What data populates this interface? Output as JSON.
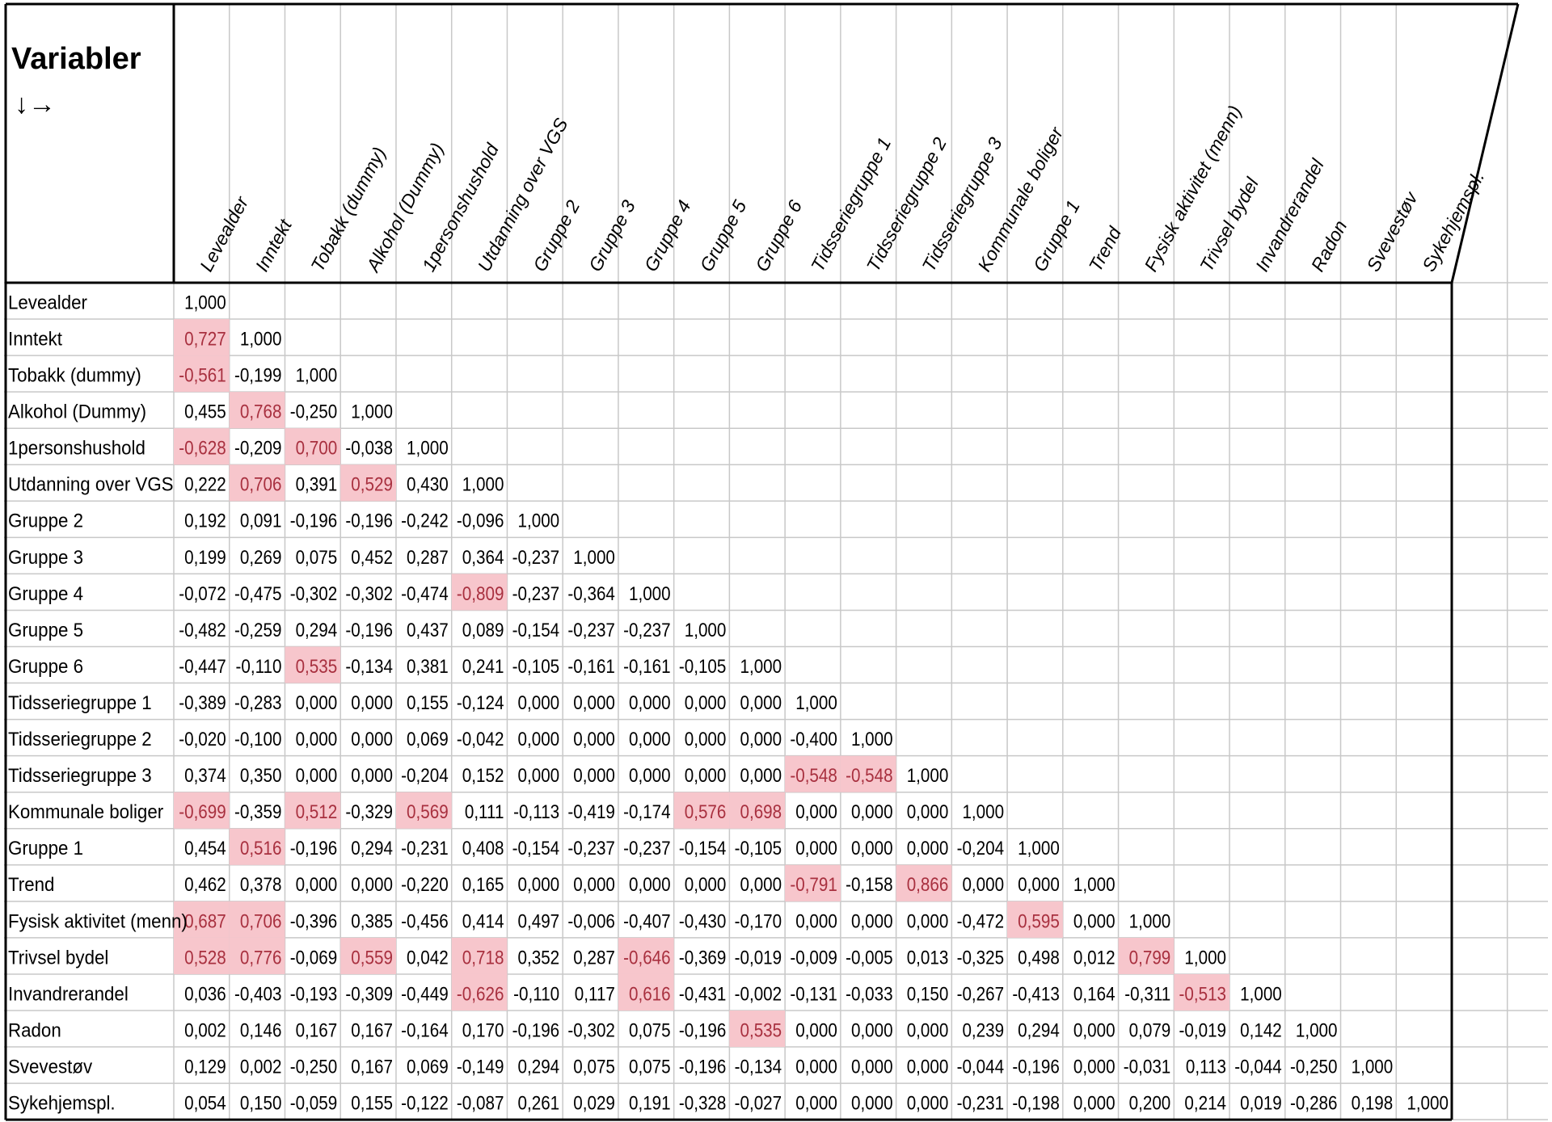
{
  "title": "Variabler",
  "arrow_symbol": "↓→",
  "colors": {
    "highlight": "#f7c6cc",
    "highlight_text": "#a8303f",
    "grid": "#c8c8c8",
    "border": "#000000",
    "text": "#000000"
  },
  "chart_data": {
    "type": "table",
    "variables": [
      "Levealder",
      "Inntekt",
      "Tobakk (dummy)",
      "Alkohol (Dummy)",
      "1personshushold",
      "Utdanning over VGS",
      "Gruppe 2",
      "Gruppe 3",
      "Gruppe 4",
      "Gruppe 5",
      "Gruppe 6",
      "Tidsseriegruppe 1",
      "Tidsseriegruppe 2",
      "Tidsseriegruppe 3",
      "Kommunale boliger",
      "Gruppe 1",
      "Trend",
      "Fysisk aktivitet (menn)",
      "Trivsel bydel",
      "Invandrerandel",
      "Radon",
      "Svevestøv",
      "Sykehjemspl."
    ],
    "values": [
      [
        "1,000"
      ],
      [
        "0,727",
        "1,000"
      ],
      [
        "-0,561",
        "-0,199",
        "1,000"
      ],
      [
        "0,455",
        "0,768",
        "-0,250",
        "1,000"
      ],
      [
        "-0,628",
        "-0,209",
        "0,700",
        "-0,038",
        "1,000"
      ],
      [
        "0,222",
        "0,706",
        "0,391",
        "0,529",
        "0,430",
        "1,000"
      ],
      [
        "0,192",
        "0,091",
        "-0,196",
        "-0,196",
        "-0,242",
        "-0,096",
        "1,000"
      ],
      [
        "0,199",
        "0,269",
        "0,075",
        "0,452",
        "0,287",
        "0,364",
        "-0,237",
        "1,000"
      ],
      [
        "-0,072",
        "-0,475",
        "-0,302",
        "-0,302",
        "-0,474",
        "-0,809",
        "-0,237",
        "-0,364",
        "1,000"
      ],
      [
        "-0,482",
        "-0,259",
        "0,294",
        "-0,196",
        "0,437",
        "0,089",
        "-0,154",
        "-0,237",
        "-0,237",
        "1,000"
      ],
      [
        "-0,447",
        "-0,110",
        "0,535",
        "-0,134",
        "0,381",
        "0,241",
        "-0,105",
        "-0,161",
        "-0,161",
        "-0,105",
        "1,000"
      ],
      [
        "-0,389",
        "-0,283",
        "0,000",
        "0,000",
        "0,155",
        "-0,124",
        "0,000",
        "0,000",
        "0,000",
        "0,000",
        "0,000",
        "1,000"
      ],
      [
        "-0,020",
        "-0,100",
        "0,000",
        "0,000",
        "0,069",
        "-0,042",
        "0,000",
        "0,000",
        "0,000",
        "0,000",
        "0,000",
        "-0,400",
        "1,000"
      ],
      [
        "0,374",
        "0,350",
        "0,000",
        "0,000",
        "-0,204",
        "0,152",
        "0,000",
        "0,000",
        "0,000",
        "0,000",
        "0,000",
        "-0,548",
        "-0,548",
        "1,000"
      ],
      [
        "-0,699",
        "-0,359",
        "0,512",
        "-0,329",
        "0,569",
        "0,111",
        "-0,113",
        "-0,419",
        "-0,174",
        "0,576",
        "0,698",
        "0,000",
        "0,000",
        "0,000",
        "1,000"
      ],
      [
        "0,454",
        "0,516",
        "-0,196",
        "0,294",
        "-0,231",
        "0,408",
        "-0,154",
        "-0,237",
        "-0,237",
        "-0,154",
        "-0,105",
        "0,000",
        "0,000",
        "0,000",
        "-0,204",
        "1,000"
      ],
      [
        "0,462",
        "0,378",
        "0,000",
        "0,000",
        "-0,220",
        "0,165",
        "0,000",
        "0,000",
        "0,000",
        "0,000",
        "0,000",
        "-0,791",
        "-0,158",
        "0,866",
        "0,000",
        "0,000",
        "1,000"
      ],
      [
        "0,687",
        "0,706",
        "-0,396",
        "0,385",
        "-0,456",
        "0,414",
        "0,497",
        "-0,006",
        "-0,407",
        "-0,430",
        "-0,170",
        "0,000",
        "0,000",
        "0,000",
        "-0,472",
        "0,595",
        "0,000",
        "1,000"
      ],
      [
        "0,528",
        "0,776",
        "-0,069",
        "0,559",
        "0,042",
        "0,718",
        "0,352",
        "0,287",
        "-0,646",
        "-0,369",
        "-0,019",
        "-0,009",
        "-0,005",
        "0,013",
        "-0,325",
        "0,498",
        "0,012",
        "0,799",
        "1,000"
      ],
      [
        "0,036",
        "-0,403",
        "-0,193",
        "-0,309",
        "-0,449",
        "-0,626",
        "-0,110",
        "0,117",
        "0,616",
        "-0,431",
        "-0,002",
        "-0,131",
        "-0,033",
        "0,150",
        "-0,267",
        "-0,413",
        "0,164",
        "-0,311",
        "-0,513",
        "1,000"
      ],
      [
        "0,002",
        "0,146",
        "0,167",
        "0,167",
        "-0,164",
        "0,170",
        "-0,196",
        "-0,302",
        "0,075",
        "-0,196",
        "0,535",
        "0,000",
        "0,000",
        "0,000",
        "0,239",
        "0,294",
        "0,000",
        "0,079",
        "-0,019",
        "0,142",
        "1,000"
      ],
      [
        "0,129",
        "0,002",
        "-0,250",
        "0,167",
        "0,069",
        "-0,149",
        "0,294",
        "0,075",
        "0,075",
        "-0,196",
        "-0,134",
        "0,000",
        "0,000",
        "0,000",
        "-0,044",
        "-0,196",
        "0,000",
        "-0,031",
        "0,113",
        "-0,044",
        "-0,250",
        "1,000"
      ],
      [
        "0,054",
        "0,150",
        "-0,059",
        "0,155",
        "-0,122",
        "-0,087",
        "0,261",
        "0,029",
        "0,191",
        "-0,328",
        "-0,027",
        "0,000",
        "0,000",
        "0,000",
        "-0,231",
        "-0,198",
        "0,000",
        "0,200",
        "0,214",
        "0,019",
        "-0,286",
        "0,198",
        "1,000"
      ]
    ],
    "highlighted": [
      [
        1,
        0
      ],
      [
        2,
        0
      ],
      [
        3,
        1
      ],
      [
        4,
        0
      ],
      [
        4,
        2
      ],
      [
        5,
        1
      ],
      [
        5,
        3
      ],
      [
        8,
        5
      ],
      [
        10,
        2
      ],
      [
        13,
        11
      ],
      [
        13,
        12
      ],
      [
        14,
        0
      ],
      [
        14,
        2
      ],
      [
        14,
        4
      ],
      [
        14,
        9
      ],
      [
        14,
        10
      ],
      [
        15,
        1
      ],
      [
        16,
        11
      ],
      [
        16,
        13
      ],
      [
        17,
        0
      ],
      [
        17,
        1
      ],
      [
        17,
        15
      ],
      [
        18,
        0
      ],
      [
        18,
        1
      ],
      [
        18,
        3
      ],
      [
        18,
        5
      ],
      [
        18,
        8
      ],
      [
        18,
        17
      ],
      [
        19,
        5
      ],
      [
        19,
        8
      ],
      [
        19,
        18
      ],
      [
        20,
        10
      ]
    ]
  }
}
